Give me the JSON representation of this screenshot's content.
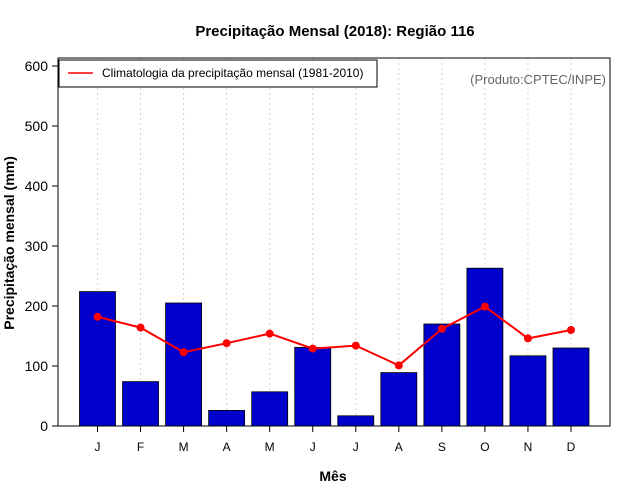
{
  "chart_data": {
    "type": "bar",
    "title": "Precipitação Mensal (2018): Região 116",
    "xlabel": "Mês",
    "ylabel": "Precipitação mensal (mm)",
    "ylim": [
      0,
      620
    ],
    "yticks": [
      0,
      100,
      200,
      300,
      400,
      500,
      600
    ],
    "categories": [
      "J",
      "F",
      "M",
      "A",
      "M",
      "J",
      "J",
      "A",
      "S",
      "O",
      "N",
      "D"
    ],
    "series": [
      {
        "name": "Precipitação mensal (2018)",
        "kind": "bar",
        "color": "#0000CD",
        "values": [
          224,
          74,
          205,
          26,
          57,
          131,
          17,
          89,
          170,
          263,
          117,
          130
        ]
      },
      {
        "name": "Climatologia da precipitação mensal (1981-2010)",
        "kind": "line",
        "color": "#FF0000",
        "values": [
          182,
          164,
          123,
          138,
          154,
          129,
          134,
          101,
          162,
          199,
          146,
          160
        ]
      }
    ],
    "legend": {
      "label": "Climatologia da precipitação mensal (1981-2010)",
      "position": "top-left"
    },
    "credit": "(Produto:CPTEC/INPE)",
    "grid": "vertical dotted"
  }
}
